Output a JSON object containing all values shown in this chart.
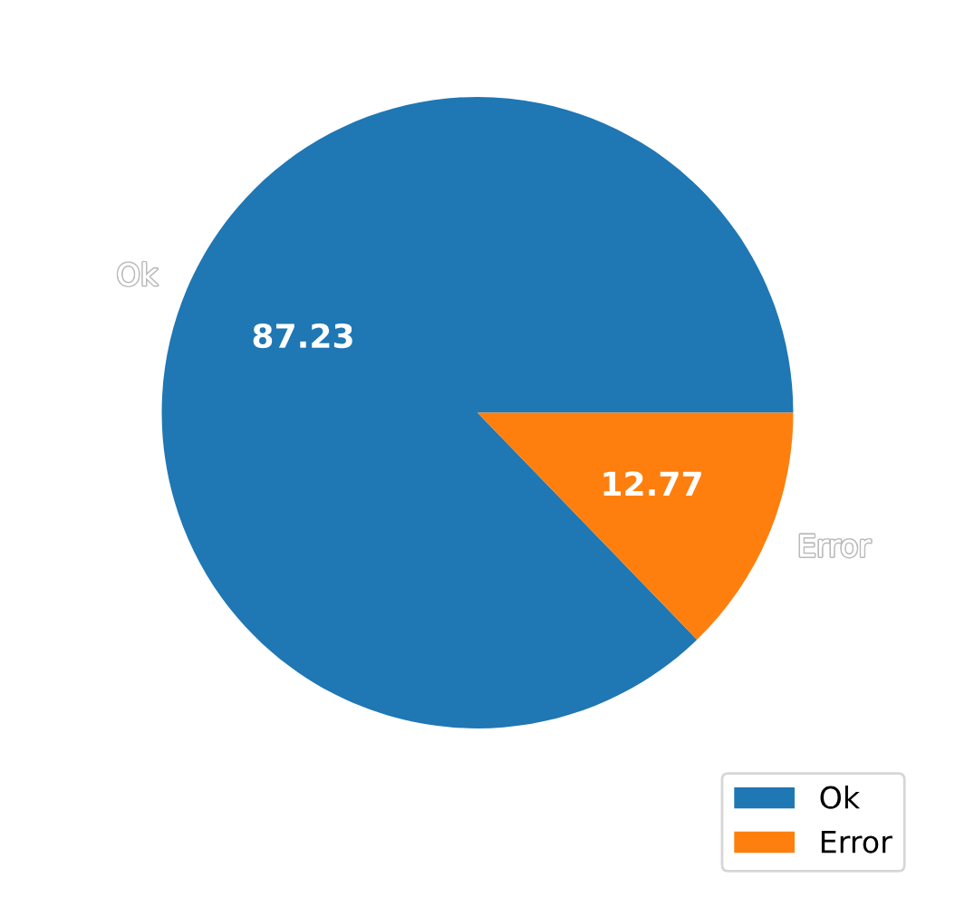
{
  "chart_data": {
    "type": "pie",
    "categories": [
      "Ok",
      "Error"
    ],
    "values": [
      87.23,
      12.77
    ],
    "colors": [
      "#1f77b4",
      "#ff7f0e"
    ],
    "data_labels": true,
    "legend": "bottom right"
  }
}
